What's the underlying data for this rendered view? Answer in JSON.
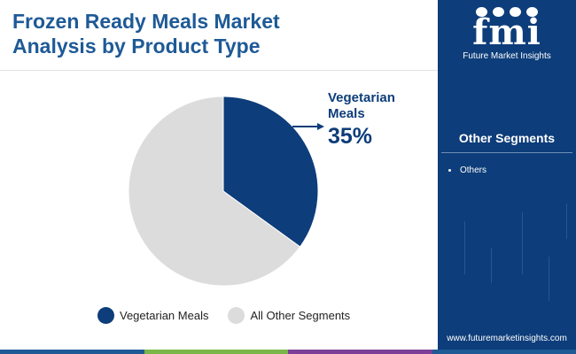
{
  "title": {
    "line1": "Frozen Ready Meals Market",
    "line2": "Analysis by Product Type"
  },
  "chart_data": {
    "type": "pie",
    "categories": [
      "Vegetarian Meals",
      "All Other Segments"
    ],
    "values": [
      35,
      65
    ],
    "colors": [
      "#0d3d7a",
      "#dcdcdc"
    ],
    "callout": {
      "category": [
        "Vegetarian",
        "Meals"
      ],
      "value_label": "35%"
    },
    "legend": [
      "Vegetarian Meals",
      "All Other Segments"
    ],
    "legend_placement": "bottom"
  },
  "sidebar": {
    "brand_logo": "fmi",
    "brand_name": "Future Market Insights",
    "segments_title": "Other Segments",
    "segments": [
      "Others"
    ],
    "website": "www.futuremarketinsights.com"
  },
  "bottom_bar_colors": [
    "#1e5a96",
    "#7ab648",
    "#7b3f97",
    "#1e5a96"
  ],
  "accent": "#0d3d7a"
}
